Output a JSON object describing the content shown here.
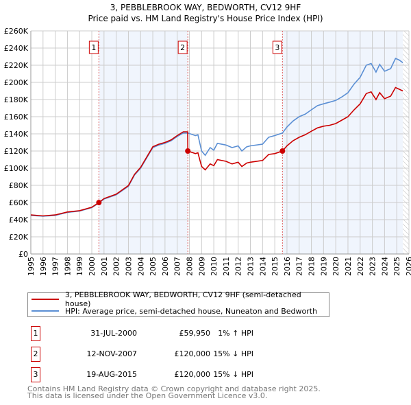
{
  "chart_data": {
    "type": "line",
    "title": "3, PEBBLEBROOK WAY, BEDWORTH, CV12 9HF",
    "subtitle": "Price paid vs. HM Land Registry's House Price Index (HPI)",
    "xlim": [
      1995,
      2026
    ],
    "ylim": [
      0,
      260000
    ],
    "grid": true,
    "x_ticks": [
      "1995",
      "1996",
      "1997",
      "1998",
      "1999",
      "2000",
      "2001",
      "2002",
      "2003",
      "2004",
      "2005",
      "2006",
      "2007",
      "2008",
      "2009",
      "2010",
      "2011",
      "2012",
      "2013",
      "2014",
      "2015",
      "2016",
      "2017",
      "2018",
      "2019",
      "2020",
      "2021",
      "2022",
      "2023",
      "2024",
      "2025",
      "2026"
    ],
    "y_ticks": [
      "£0",
      "£20K",
      "£40K",
      "£60K",
      "£80K",
      "£100K",
      "£120K",
      "£140K",
      "£160K",
      "£180K",
      "£200K",
      "£220K",
      "£240K",
      "£260K"
    ],
    "forecast_from": 2025.5,
    "series": [
      {
        "name": "3, PEBBLEBROOK WAY, BEDWORTH, CV12 9HF (semi-detached house)",
        "color": "#cc0000",
        "x": [
          1995,
          1996,
          1997,
          1998,
          1999,
          2000,
          2000.58,
          2001,
          2002,
          2003,
          2003.5,
          2004,
          2004.5,
          2005,
          2005.5,
          2006,
          2006.5,
          2007,
          2007.5,
          2007.86,
          2007.87,
          2008.5,
          2008.7,
          2009,
          2009.3,
          2009.7,
          2010,
          2010.3,
          2011,
          2011.5,
          2012,
          2012.3,
          2012.7,
          2013,
          2014,
          2014.5,
          2015,
          2015.63,
          2016,
          2016.5,
          2017,
          2017.5,
          2018,
          2018.5,
          2019,
          2019.5,
          2020,
          2020.5,
          2021,
          2021.5,
          2022,
          2022.5,
          2022.9,
          2023.3,
          2023.6,
          2024,
          2024.5,
          2024.9,
          2025.2,
          2025.5
        ],
        "y": [
          45500,
          44400,
          45500,
          49000,
          50500,
          54500,
          59950,
          64600,
          69700,
          79800,
          92900,
          101000,
          113000,
          125000,
          128000,
          130000,
          133000,
          138000,
          142400,
          142400,
          120000,
          117000,
          118000,
          102000,
          98000,
          105000,
          103000,
          110000,
          108000,
          105000,
          107000,
          102000,
          106000,
          107000,
          109000,
          116000,
          117000,
          120000,
          126000,
          132000,
          136000,
          139000,
          143000,
          147000,
          149000,
          150000,
          152000,
          156000,
          160000,
          168000,
          175000,
          187000,
          189000,
          180000,
          188000,
          181000,
          184000,
          194000,
          192000,
          190000
        ]
      },
      {
        "name": "HPI: Average price, semi-detached house, Nuneaton and Bedworth",
        "color": "#5b8fd4",
        "x": [
          1995,
          1996,
          1997,
          1998,
          1999,
          2000,
          2000.58,
          2001,
          2002,
          2003,
          2003.5,
          2004,
          2004.5,
          2005,
          2005.5,
          2006,
          2006.5,
          2007,
          2007.5,
          2007.87,
          2008.5,
          2008.7,
          2009,
          2009.3,
          2009.7,
          2010,
          2010.3,
          2011,
          2011.5,
          2012,
          2012.3,
          2012.7,
          2013,
          2014,
          2014.5,
          2015,
          2015.63,
          2016,
          2016.5,
          2017,
          2017.5,
          2018,
          2018.5,
          2019,
          2019.5,
          2020,
          2020.5,
          2021,
          2021.5,
          2022,
          2022.5,
          2022.9,
          2023.3,
          2023.6,
          2024,
          2024.5,
          2024.9,
          2025.2,
          2025.5
        ],
        "y": [
          45000,
          44000,
          45000,
          48500,
          50000,
          54000,
          59500,
          64000,
          69000,
          79000,
          92000,
          100000,
          112000,
          124000,
          127000,
          129000,
          132000,
          137000,
          141000,
          141000,
          138000,
          139000,
          120000,
          115000,
          124000,
          121000,
          129000,
          127000,
          124000,
          126000,
          120000,
          125000,
          126000,
          128000,
          136000,
          138000,
          141000,
          148000,
          155000,
          160000,
          163000,
          168000,
          173000,
          175000,
          177000,
          179000,
          183000,
          188000,
          198000,
          206000,
          220000,
          222000,
          212000,
          221000,
          213000,
          216000,
          228000,
          226000,
          223000
        ]
      }
    ],
    "sales": [
      {
        "label": "1",
        "x": 2000.58,
        "y": 59950
      },
      {
        "label": "2",
        "x": 2007.87,
        "y": 120000
      },
      {
        "label": "3",
        "x": 2015.63,
        "y": 120000
      }
    ]
  },
  "legend": {
    "property": "3, PEBBLEBROOK WAY, BEDWORTH, CV12 9HF (semi-detached house)",
    "hpi": "HPI: Average price, semi-detached house, Nuneaton and Bedworth"
  },
  "transactions": [
    {
      "num": "1",
      "date": "31-JUL-2000",
      "price": "£59,950",
      "hpi": "1% ↑ HPI"
    },
    {
      "num": "2",
      "date": "12-NOV-2007",
      "price": "£120,000",
      "hpi": "15% ↓ HPI"
    },
    {
      "num": "3",
      "date": "19-AUG-2015",
      "price": "£120,000",
      "hpi": "15% ↓ HPI"
    }
  ],
  "footer": {
    "line1": "Contains HM Land Registry data © Crown copyright and database right 2025.",
    "line2": "This data is licensed under the Open Government Licence v3.0."
  }
}
